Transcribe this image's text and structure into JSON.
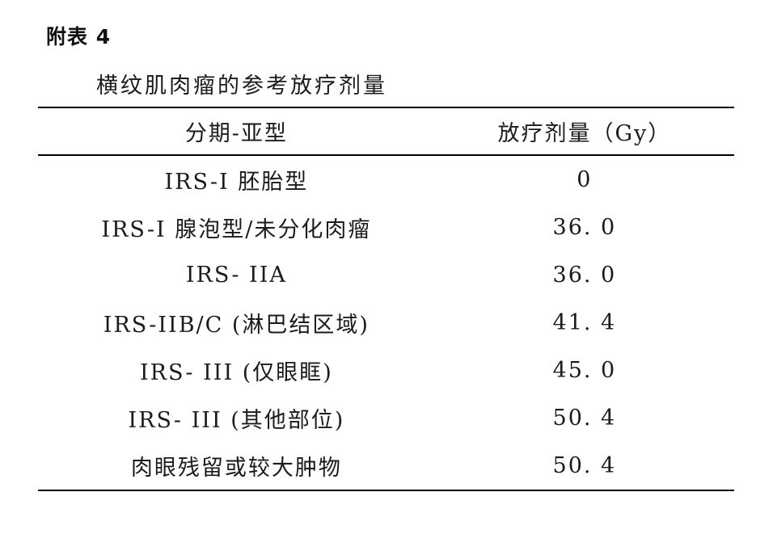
{
  "page": {
    "appendix_label": "附表 4",
    "table_title": "横纹肌肉瘤的参考放疗剂量"
  },
  "table": {
    "columns": {
      "subtype": "分期-亚型",
      "dose": "放疗剂量（Gy）"
    },
    "rows": [
      {
        "subtype": "IRS-I 胚胎型",
        "dose": "0"
      },
      {
        "subtype": "IRS-I 腺泡型/未分化肉瘤",
        "dose": "36. 0"
      },
      {
        "subtype": "IRS- IIA",
        "dose": "36. 0"
      },
      {
        "subtype": "IRS-IIB/C (淋巴结区域)",
        "dose": "41. 4"
      },
      {
        "subtype": "IRS- III (仅眼眶)",
        "dose": "45. 0"
      },
      {
        "subtype": "IRS- III (其他部位)",
        "dose": "50. 4"
      },
      {
        "subtype": "肉眼残留或较大肿物",
        "dose": "50. 4"
      }
    ]
  },
  "colors": {
    "text": "#1b1b1b",
    "rule": "#000000",
    "background": "#ffffff"
  }
}
